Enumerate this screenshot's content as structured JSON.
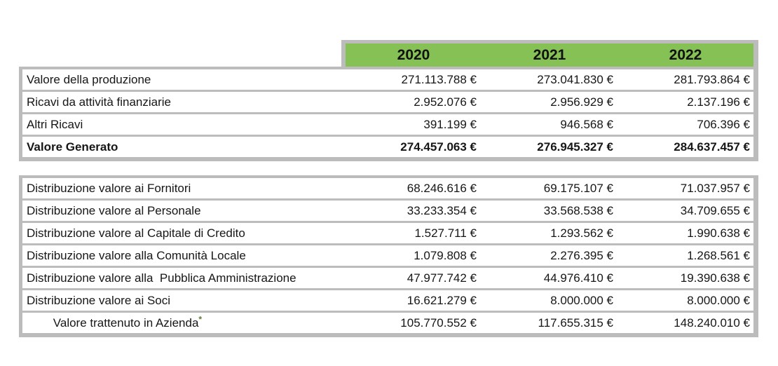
{
  "colors": {
    "header_green": "#85c155",
    "table_border_gray": "#bcbcbc",
    "footnote_marker_green": "#5c7a2f"
  },
  "table": {
    "columns": [
      "2020",
      "2021",
      "2022"
    ],
    "footnote_marker": "*",
    "sections": [
      {
        "rows": [
          {
            "label": "Valore della produzione",
            "values": [
              "271.113.788 €",
              "273.041.830 €",
              "281.793.864 €"
            ]
          },
          {
            "label": "Ricavi da attività finanziarie",
            "values": [
              "2.952.076 €",
              "2.956.929 €",
              "2.137.196 €"
            ]
          },
          {
            "label": "Altri Ricavi",
            "values": [
              "391.199 €",
              "946.568 €",
              "706.396 €"
            ]
          },
          {
            "label": "Valore Generato",
            "values": [
              "274.457.063 €",
              "276.945.327 €",
              "284.637.457 €"
            ]
          }
        ]
      },
      {
        "rows": [
          {
            "label": "Distribuzione valore ai Fornitori",
            "values": [
              "68.246.616 €",
              "69.175.107 €",
              "71.037.957 €"
            ]
          },
          {
            "label": "Distribuzione valore al Personale",
            "values": [
              "33.233.354 €",
              "33.568.538 €",
              "34.709.655 €"
            ]
          },
          {
            "label": "Distribuzione valore al Capitale di Credito",
            "values": [
              "1.527.711 €",
              "1.293.562 €",
              "1.990.638 €"
            ]
          },
          {
            "label": "Distribuzione valore alla Comunità Locale",
            "values": [
              "1.079.808 €",
              "2.276.395 €",
              "1.268.561 €"
            ]
          },
          {
            "label": "Distribuzione valore alla  Pubblica Amministrazione",
            "values": [
              "47.977.742 €",
              "44.976.410 €",
              "19.390.638 €"
            ]
          },
          {
            "label": "Distribuzione valore ai Soci",
            "values": [
              "16.621.279 €",
              "8.000.000 €",
              "8.000.000 €"
            ]
          },
          {
            "label": "Valore trattenuto in Azienda",
            "values": [
              "105.770.552 €",
              "117.655.315 €",
              "148.240.010 €"
            ]
          }
        ]
      }
    ]
  }
}
